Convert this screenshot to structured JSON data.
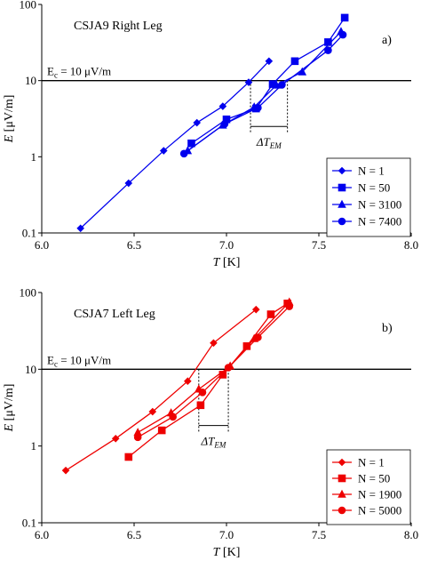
{
  "chart_data": [
    {
      "type": "line",
      "panel_label": "a)",
      "title": "CSJA9 Right Leg",
      "xlabel_italic": "T",
      "xlabel_unit": " [K]",
      "ylabel_italic": "E",
      "ylabel_unit": " [μV/m]",
      "x_ticks": [
        "6.0",
        "6.5",
        "7.0",
        "7.5",
        "8.0"
      ],
      "y_ticks": [
        "0.1",
        "1",
        "10",
        "100"
      ],
      "xlim": [
        6.0,
        8.0
      ],
      "ylim": [
        0.1,
        100
      ],
      "yscale": "log",
      "color": "#0000ee",
      "criterion": {
        "label": "E",
        "label_sub": "c",
        "label_rest": " = 10 μV/m",
        "value": 10
      },
      "delta": {
        "symbol": "ΔT",
        "sub": "EM",
        "x_left": 7.13,
        "x_right": 7.33,
        "y_bracket": 2.5
      },
      "series": [
        {
          "name": "N = 1",
          "marker": "diamond",
          "x": [
            6.21,
            6.47,
            6.66,
            6.84,
            6.98,
            7.12,
            7.23
          ],
          "y": [
            0.115,
            0.45,
            1.2,
            2.8,
            4.6,
            9.5,
            18
          ]
        },
        {
          "name": "N = 50",
          "marker": "square",
          "x": [
            6.81,
            7.0,
            7.16,
            7.25,
            7.37,
            7.55,
            7.64
          ],
          "y": [
            1.5,
            3.1,
            4.3,
            9.0,
            18,
            32,
            67
          ]
        },
        {
          "name": "N = 3100",
          "marker": "triangle",
          "x": [
            6.79,
            6.98,
            7.15,
            7.27,
            7.41,
            7.62
          ],
          "y": [
            1.2,
            2.6,
            4.5,
            8.7,
            13,
            44
          ]
        },
        {
          "name": "N = 7400",
          "marker": "circle",
          "x": [
            6.77,
            6.99,
            7.17,
            7.3,
            7.55,
            7.63
          ],
          "y": [
            1.1,
            2.7,
            4.4,
            8.8,
            25,
            40
          ]
        }
      ]
    },
    {
      "type": "line",
      "panel_label": "b)",
      "title": "CSJA7 Left Leg",
      "xlabel_italic": "T",
      "xlabel_unit": " [K]",
      "ylabel_italic": "E",
      "ylabel_unit": " [μV/m]",
      "x_ticks": [
        "6.0",
        "6.5",
        "7.0",
        "7.5",
        "8.0"
      ],
      "y_ticks": [
        "0.1",
        "1",
        "10",
        "100"
      ],
      "xlim": [
        6.0,
        8.0
      ],
      "ylim": [
        0.1,
        100
      ],
      "yscale": "log",
      "color": "#ee0000",
      "criterion": {
        "label": "E",
        "label_sub": "c",
        "label_rest": " = 10 μV/m",
        "value": 10
      },
      "delta": {
        "symbol": "ΔT",
        "sub": "EM",
        "x_left": 6.85,
        "x_right": 7.01,
        "y_bracket": 1.85
      },
      "series": [
        {
          "name": "N = 1",
          "marker": "diamond",
          "x": [
            6.13,
            6.4,
            6.6,
            6.79,
            6.93,
            7.16
          ],
          "y": [
            0.48,
            1.25,
            2.8,
            7.0,
            22,
            60
          ]
        },
        {
          "name": "N = 50",
          "marker": "square",
          "x": [
            6.47,
            6.65,
            6.86,
            6.98,
            7.11,
            7.24,
            7.33
          ],
          "y": [
            0.72,
            1.6,
            3.4,
            8.5,
            20,
            52,
            72
          ]
        },
        {
          "name": "N = 1900",
          "marker": "triangle",
          "x": [
            6.52,
            6.7,
            6.85,
            7.02,
            7.15,
            7.34
          ],
          "y": [
            1.5,
            2.7,
            5.5,
            11,
            25,
            75
          ]
        },
        {
          "name": "N = 5000",
          "marker": "circle",
          "x": [
            6.52,
            6.71,
            6.87,
            7.01,
            7.17,
            7.34
          ],
          "y": [
            1.3,
            2.4,
            5.0,
            10.5,
            26,
            66
          ]
        }
      ]
    }
  ]
}
